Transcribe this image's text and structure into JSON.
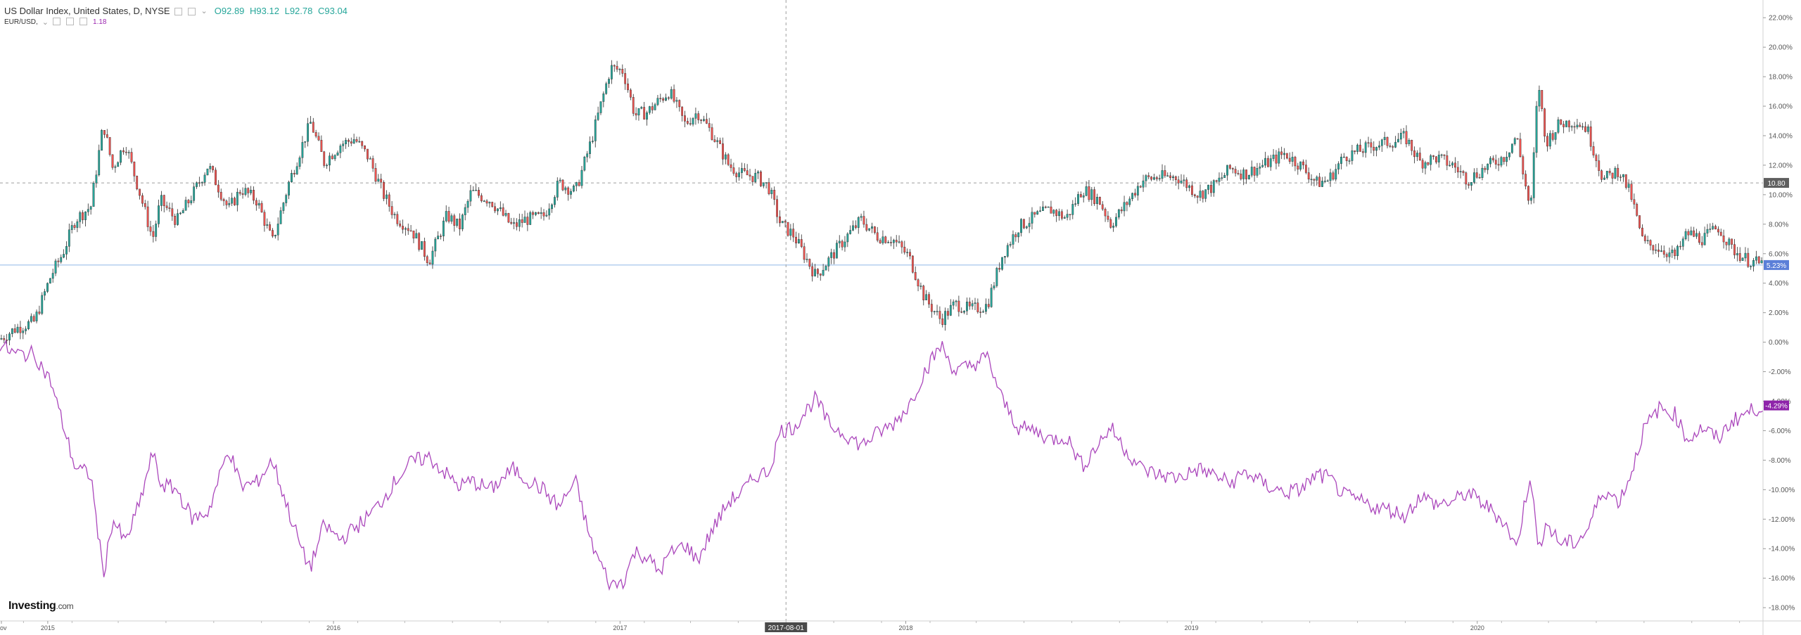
{
  "legend": {
    "symbol": "US Dollar Index, United States, D, NYSE",
    "open": "O92.89",
    "high": "H93.12",
    "low": "L92.78",
    "close": "C93.04",
    "compare_symbol": "EUR/USD,",
    "compare_value": "1.18"
  },
  "logo": {
    "text": "Investing",
    "suffix": ".com"
  },
  "crosshair_date_label": "2017-08-01",
  "colors": {
    "up": "#26a69a",
    "down": "#ef5350",
    "dxy_line": "#1e6b3a",
    "eurusd": "#ab47bc",
    "last_dxy_badge": "#5b7fd8",
    "last_eur_badge": "#8e24aa",
    "hline": "#8fb8e6"
  },
  "chart_data": {
    "type": "line",
    "title": "US Dollar Index, United States, D, NYSE",
    "xlabel": "",
    "ylabel": "",
    "x_tick_labels": [
      "ov",
      "2015",
      "2016",
      "2017",
      "2018",
      "2019",
      "2020"
    ],
    "y_tick_labels": [
      "22.00%",
      "20.00%",
      "18.00%",
      "16.00%",
      "14.00%",
      "12.00%",
      "10.00%",
      "8.00%",
      "6.00%",
      "4.00%",
      "2.00%",
      "0.00%",
      "-2.00%",
      "-4.00%",
      "-6.00%",
      "-8.00%",
      "-10.00%",
      "-12.00%",
      "-14.00%",
      "-16.00%",
      "-18.00%"
    ],
    "ylim": [
      -18.9,
      23.2
    ],
    "y_unit": "%",
    "grid": false,
    "x_start": "2014-11-01",
    "x_end": "2020-12-31",
    "reference_lines": [
      {
        "label": "10.80",
        "value": 10.8,
        "style": "dashed"
      },
      {
        "label": "5.23%",
        "value": 5.23,
        "style": "solid"
      }
    ],
    "crosshair": {
      "x": "2017-08-01"
    },
    "series": [
      {
        "name": "US Dollar Index",
        "kind": "candlestick",
        "last_label": "5.23%",
        "points": [
          [
            "2014-11-01",
            0.2
          ],
          [
            "2014-11-20",
            0.9
          ],
          [
            "2014-12-15",
            1.4
          ],
          [
            "2015-01-05",
            4.5
          ],
          [
            "2015-01-20",
            6.0
          ],
          [
            "2015-02-05",
            8.3
          ],
          [
            "2015-02-25",
            9.2
          ],
          [
            "2015-03-13",
            14.8
          ],
          [
            "2015-03-25",
            11.8
          ],
          [
            "2015-04-10",
            13.5
          ],
          [
            "2015-04-28",
            10.2
          ],
          [
            "2015-05-15",
            7.0
          ],
          [
            "2015-05-25",
            9.6
          ],
          [
            "2015-06-15",
            8.2
          ],
          [
            "2015-07-05",
            10.0
          ],
          [
            "2015-07-25",
            12.0
          ],
          [
            "2015-08-20",
            9.0
          ],
          [
            "2015-09-05",
            10.4
          ],
          [
            "2015-09-25",
            9.6
          ],
          [
            "2015-10-15",
            6.8
          ],
          [
            "2015-11-05",
            10.8
          ],
          [
            "2015-11-25",
            13.8
          ],
          [
            "2015-12-03",
            14.9
          ],
          [
            "2015-12-20",
            12.2
          ],
          [
            "2016-01-10",
            13.4
          ],
          [
            "2016-01-28",
            13.8
          ],
          [
            "2016-02-15",
            12.5
          ],
          [
            "2016-03-05",
            10.0
          ],
          [
            "2016-03-20",
            8.5
          ],
          [
            "2016-04-10",
            7.6
          ],
          [
            "2016-05-02",
            5.5
          ],
          [
            "2016-05-25",
            8.6
          ],
          [
            "2016-06-10",
            7.8
          ],
          [
            "2016-06-25",
            10.2
          ],
          [
            "2016-07-20",
            9.6
          ],
          [
            "2016-08-17",
            7.8
          ],
          [
            "2016-09-01",
            8.3
          ],
          [
            "2016-09-25",
            8.5
          ],
          [
            "2016-10-15",
            10.8
          ],
          [
            "2016-11-05",
            10.2
          ],
          [
            "2016-11-25",
            13.6
          ],
          [
            "2016-12-20",
            18.6
          ],
          [
            "2017-01-05",
            18.4
          ],
          [
            "2017-01-20",
            15.4
          ],
          [
            "2017-02-05",
            15.6
          ],
          [
            "2017-02-20",
            16.4
          ],
          [
            "2017-03-05",
            17.0
          ],
          [
            "2017-03-25",
            14.8
          ],
          [
            "2017-04-10",
            15.6
          ],
          [
            "2017-04-28",
            14.2
          ],
          [
            "2017-05-20",
            12.0
          ],
          [
            "2017-06-05",
            11.4
          ],
          [
            "2017-06-25",
            11.2
          ],
          [
            "2017-07-10",
            10.5
          ],
          [
            "2017-07-25",
            8.0
          ],
          [
            "2017-08-10",
            7.3
          ],
          [
            "2017-09-08",
            4.5
          ],
          [
            "2017-09-25",
            5.6
          ],
          [
            "2017-10-15",
            7.0
          ],
          [
            "2017-11-05",
            8.3
          ],
          [
            "2017-11-25",
            7.2
          ],
          [
            "2017-12-15",
            7.0
          ],
          [
            "2018-01-05",
            5.8
          ],
          [
            "2018-01-25",
            3.0
          ],
          [
            "2018-02-15",
            1.5
          ],
          [
            "2018-03-05",
            2.6
          ],
          [
            "2018-03-25",
            2.2
          ],
          [
            "2018-04-15",
            2.5
          ],
          [
            "2018-05-05",
            6.0
          ],
          [
            "2018-05-25",
            7.8
          ],
          [
            "2018-06-15",
            8.5
          ],
          [
            "2018-07-05",
            9.0
          ],
          [
            "2018-07-25",
            8.4
          ],
          [
            "2018-08-15",
            10.4
          ],
          [
            "2018-09-05",
            9.6
          ],
          [
            "2018-09-20",
            8.0
          ],
          [
            "2018-10-10",
            9.4
          ],
          [
            "2018-10-30",
            11.0
          ],
          [
            "2018-11-20",
            11.2
          ],
          [
            "2018-12-14",
            11.2
          ],
          [
            "2019-01-10",
            10.0
          ],
          [
            "2019-01-30",
            10.6
          ],
          [
            "2019-02-20",
            11.8
          ],
          [
            "2019-03-10",
            11.4
          ],
          [
            "2019-04-10",
            12.2
          ],
          [
            "2019-04-30",
            12.8
          ],
          [
            "2019-05-20",
            12.0
          ],
          [
            "2019-06-10",
            10.8
          ],
          [
            "2019-06-25",
            11.0
          ],
          [
            "2019-07-15",
            12.6
          ],
          [
            "2019-08-05",
            13.0
          ],
          [
            "2019-08-25",
            13.4
          ],
          [
            "2019-09-15",
            13.6
          ],
          [
            "2019-10-01",
            13.9
          ],
          [
            "2019-10-20",
            12.2
          ],
          [
            "2019-11-10",
            12.5
          ],
          [
            "2019-12-01",
            12.0
          ],
          [
            "2019-12-20",
            11.0
          ],
          [
            "2020-01-10",
            11.8
          ],
          [
            "2020-02-05",
            12.6
          ],
          [
            "2020-02-20",
            14.0
          ],
          [
            "2020-03-09",
            8.8
          ],
          [
            "2020-03-19",
            17.8
          ],
          [
            "2020-03-28",
            13.5
          ],
          [
            "2020-04-15",
            14.8
          ],
          [
            "2020-05-05",
            15.0
          ],
          [
            "2020-05-20",
            14.5
          ],
          [
            "2020-06-10",
            11.0
          ],
          [
            "2020-06-30",
            11.7
          ],
          [
            "2020-07-15",
            10.0
          ],
          [
            "2020-07-31",
            6.7
          ],
          [
            "2020-08-20",
            6.4
          ],
          [
            "2020-09-10",
            5.8
          ],
          [
            "2020-09-25",
            7.4
          ],
          [
            "2020-10-15",
            7.0
          ],
          [
            "2020-11-04",
            7.8
          ],
          [
            "2020-11-20",
            6.4
          ],
          [
            "2020-12-10",
            5.6
          ],
          [
            "2020-12-31",
            5.23
          ]
        ]
      },
      {
        "name": "EUR/USD",
        "kind": "line",
        "last_label": "-4.29%",
        "points": [
          [
            "2014-11-01",
            -0.2
          ],
          [
            "2014-11-20",
            -0.8
          ],
          [
            "2014-12-15",
            -0.8
          ],
          [
            "2015-01-05",
            -2.7
          ],
          [
            "2015-01-20",
            -5.5
          ],
          [
            "2015-02-05",
            -8.5
          ],
          [
            "2015-02-25",
            -9.0
          ],
          [
            "2015-03-13",
            -15.8
          ],
          [
            "2015-03-25",
            -12.0
          ],
          [
            "2015-04-10",
            -13.6
          ],
          [
            "2015-04-28",
            -11.0
          ],
          [
            "2015-05-15",
            -7.5
          ],
          [
            "2015-05-25",
            -9.6
          ],
          [
            "2015-06-15",
            -10.0
          ],
          [
            "2015-07-05",
            -12.0
          ],
          [
            "2015-07-25",
            -11.5
          ],
          [
            "2015-08-20",
            -7.2
          ],
          [
            "2015-09-05",
            -9.8
          ],
          [
            "2015-09-25",
            -9.5
          ],
          [
            "2015-10-15",
            -8.0
          ],
          [
            "2015-11-05",
            -11.5
          ],
          [
            "2015-11-25",
            -14.6
          ],
          [
            "2015-12-03",
            -15.2
          ],
          [
            "2015-12-20",
            -12.4
          ],
          [
            "2016-01-10",
            -13.4
          ],
          [
            "2016-01-28",
            -12.6
          ],
          [
            "2016-02-15",
            -11.8
          ],
          [
            "2016-03-05",
            -10.6
          ],
          [
            "2016-03-20",
            -9.4
          ],
          [
            "2016-04-10",
            -8.1
          ],
          [
            "2016-05-02",
            -7.8
          ],
          [
            "2016-05-25",
            -9.0
          ],
          [
            "2016-06-10",
            -9.8
          ],
          [
            "2016-06-25",
            -9.4
          ],
          [
            "2016-07-20",
            -10.0
          ],
          [
            "2016-08-17",
            -8.6
          ],
          [
            "2016-09-01",
            -9.2
          ],
          [
            "2016-09-25",
            -10.0
          ],
          [
            "2016-10-15",
            -11.2
          ],
          [
            "2016-11-05",
            -9.4
          ],
          [
            "2016-11-25",
            -13.6
          ],
          [
            "2016-12-20",
            -16.5
          ],
          [
            "2017-01-05",
            -16.2
          ],
          [
            "2017-01-20",
            -14.2
          ],
          [
            "2017-02-05",
            -14.6
          ],
          [
            "2017-02-20",
            -15.6
          ],
          [
            "2017-03-05",
            -14.4
          ],
          [
            "2017-03-25",
            -13.7
          ],
          [
            "2017-04-10",
            -14.8
          ],
          [
            "2017-04-28",
            -12.8
          ],
          [
            "2017-05-20",
            -10.8
          ],
          [
            "2017-06-05",
            -10.2
          ],
          [
            "2017-06-25",
            -9.0
          ],
          [
            "2017-07-10",
            -8.8
          ],
          [
            "2017-07-25",
            -6.0
          ],
          [
            "2017-08-10",
            -5.8
          ],
          [
            "2017-09-08",
            -3.8
          ],
          [
            "2017-09-25",
            -5.6
          ],
          [
            "2017-10-15",
            -6.2
          ],
          [
            "2017-11-05",
            -7.0
          ],
          [
            "2017-11-25",
            -6.2
          ],
          [
            "2017-12-15",
            -5.6
          ],
          [
            "2018-01-05",
            -4.3
          ],
          [
            "2018-01-25",
            -2.0
          ],
          [
            "2018-02-15",
            -0.2
          ],
          [
            "2018-03-05",
            -2.0
          ],
          [
            "2018-03-25",
            -1.6
          ],
          [
            "2018-04-15",
            -1.0
          ],
          [
            "2018-05-05",
            -4.0
          ],
          [
            "2018-05-25",
            -5.8
          ],
          [
            "2018-06-15",
            -6.0
          ],
          [
            "2018-07-05",
            -6.6
          ],
          [
            "2018-07-25",
            -6.4
          ],
          [
            "2018-08-15",
            -8.4
          ],
          [
            "2018-09-05",
            -6.8
          ],
          [
            "2018-09-20",
            -5.8
          ],
          [
            "2018-10-10",
            -7.4
          ],
          [
            "2018-10-30",
            -8.6
          ],
          [
            "2018-11-20",
            -9.0
          ],
          [
            "2018-12-14",
            -9.2
          ],
          [
            "2019-01-10",
            -8.6
          ],
          [
            "2019-01-30",
            -9.0
          ],
          [
            "2019-02-20",
            -9.6
          ],
          [
            "2019-03-10",
            -8.8
          ],
          [
            "2019-04-10",
            -9.8
          ],
          [
            "2019-04-30",
            -10.2
          ],
          [
            "2019-05-20",
            -10.0
          ],
          [
            "2019-06-10",
            -9.0
          ],
          [
            "2019-06-25",
            -9.2
          ],
          [
            "2019-07-15",
            -10.4
          ],
          [
            "2019-08-05",
            -10.8
          ],
          [
            "2019-08-25",
            -11.2
          ],
          [
            "2019-09-15",
            -11.4
          ],
          [
            "2019-10-01",
            -11.8
          ],
          [
            "2019-10-20",
            -10.4
          ],
          [
            "2019-11-10",
            -11.0
          ],
          [
            "2019-12-01",
            -10.8
          ],
          [
            "2019-12-20",
            -10.2
          ],
          [
            "2020-01-10",
            -11.0
          ],
          [
            "2020-02-05",
            -12.2
          ],
          [
            "2020-02-20",
            -14.0
          ],
          [
            "2020-03-09",
            -8.8
          ],
          [
            "2020-03-19",
            -14.3
          ],
          [
            "2020-03-28",
            -12.2
          ],
          [
            "2020-04-15",
            -13.6
          ],
          [
            "2020-05-05",
            -13.6
          ],
          [
            "2020-05-20",
            -12.8
          ],
          [
            "2020-06-10",
            -10.0
          ],
          [
            "2020-06-30",
            -10.8
          ],
          [
            "2020-07-15",
            -9.0
          ],
          [
            "2020-07-31",
            -6.0
          ],
          [
            "2020-08-20",
            -4.5
          ],
          [
            "2020-09-10",
            -4.9
          ],
          [
            "2020-09-25",
            -6.6
          ],
          [
            "2020-10-15",
            -5.8
          ],
          [
            "2020-11-04",
            -6.6
          ],
          [
            "2020-11-20",
            -5.4
          ],
          [
            "2020-12-10",
            -4.8
          ],
          [
            "2020-12-31",
            -4.29
          ]
        ]
      }
    ]
  }
}
